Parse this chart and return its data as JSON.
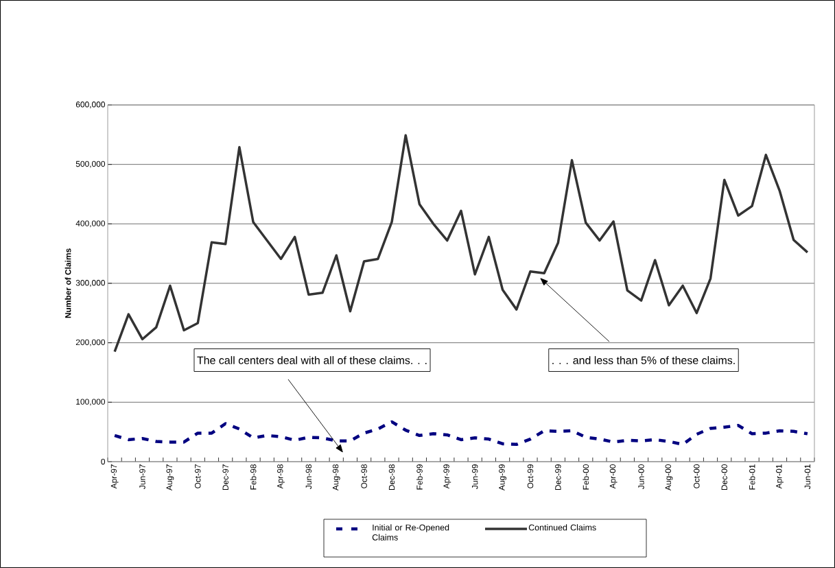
{
  "chart_data": {
    "type": "line",
    "ylabel": "Number of Claims",
    "categories": [
      "Apr-97",
      null,
      "Jun-97",
      null,
      "Aug-97",
      null,
      "Oct-97",
      null,
      "Dec-97",
      null,
      "Feb-98",
      null,
      "Apr-98",
      null,
      "Jun-98",
      null,
      "Aug-98",
      null,
      "Oct-98",
      null,
      "Dec-98",
      null,
      "Feb-99",
      null,
      "Apr-99",
      null,
      "Jun-99",
      null,
      "Aug-99",
      null,
      "Oct-99",
      null,
      "Dec-99",
      null,
      "Feb-00",
      null,
      "Apr-00",
      null,
      "Jun-00",
      null,
      "Aug-00",
      null,
      "Oct-00",
      null,
      "Dec-00",
      null,
      "Feb-01",
      null,
      "Apr-01",
      null,
      "Jun-01"
    ],
    "series": [
      {
        "name": "Initial or Re-Opened Claims",
        "color": "#000080",
        "line_style": "dashed",
        "values": [
          44000,
          37000,
          39000,
          34000,
          33000,
          33000,
          48000,
          48000,
          64000,
          55000,
          40000,
          44000,
          42000,
          36000,
          41000,
          40000,
          35000,
          35000,
          48000,
          55000,
          67000,
          53000,
          44000,
          47000,
          45000,
          37000,
          40000,
          38000,
          30000,
          29000,
          38000,
          52000,
          51000,
          52000,
          41000,
          38000,
          33000,
          36000,
          35000,
          37000,
          34000,
          29000,
          46000,
          56000,
          58000,
          61000,
          47000,
          48000,
          52000,
          51000,
          47000
        ]
      },
      {
        "name": "Continued Claims",
        "color": "#333333",
        "line_style": "solid",
        "values": [
          185000,
          248000,
          206000,
          226000,
          296000,
          221000,
          233000,
          369000,
          366000,
          529000,
          403000,
          372000,
          341000,
          378000,
          281000,
          284000,
          347000,
          253000,
          337000,
          341000,
          403000,
          549000,
          433000,
          400000,
          372000,
          422000,
          315000,
          378000,
          289000,
          256000,
          320000,
          317000,
          368000,
          507000,
          402000,
          372000,
          404000,
          288000,
          271000,
          339000,
          263000,
          296000,
          250000,
          308000,
          474000,
          414000,
          430000,
          516000,
          455000,
          373000,
          352000
        ]
      }
    ],
    "ylim": [
      0,
      600000
    ],
    "yticks": [
      0,
      {
        "value": 100000,
        "label": "100,000"
      },
      {
        "value": 200000,
        "label": "200,000"
      },
      {
        "value": 300000,
        "label": "300,000"
      },
      {
        "value": 400000,
        "label": "400,000"
      },
      {
        "value": 500000,
        "label": "500,000"
      },
      {
        "value": 600000,
        "label": "600,000"
      }
    ],
    "grid": "y",
    "legend": "bottom",
    "marker": "none",
    "annotations": [
      "The call centers deal with all of these claims. . .",
      ". . .  and less than 5% of these claims."
    ]
  }
}
